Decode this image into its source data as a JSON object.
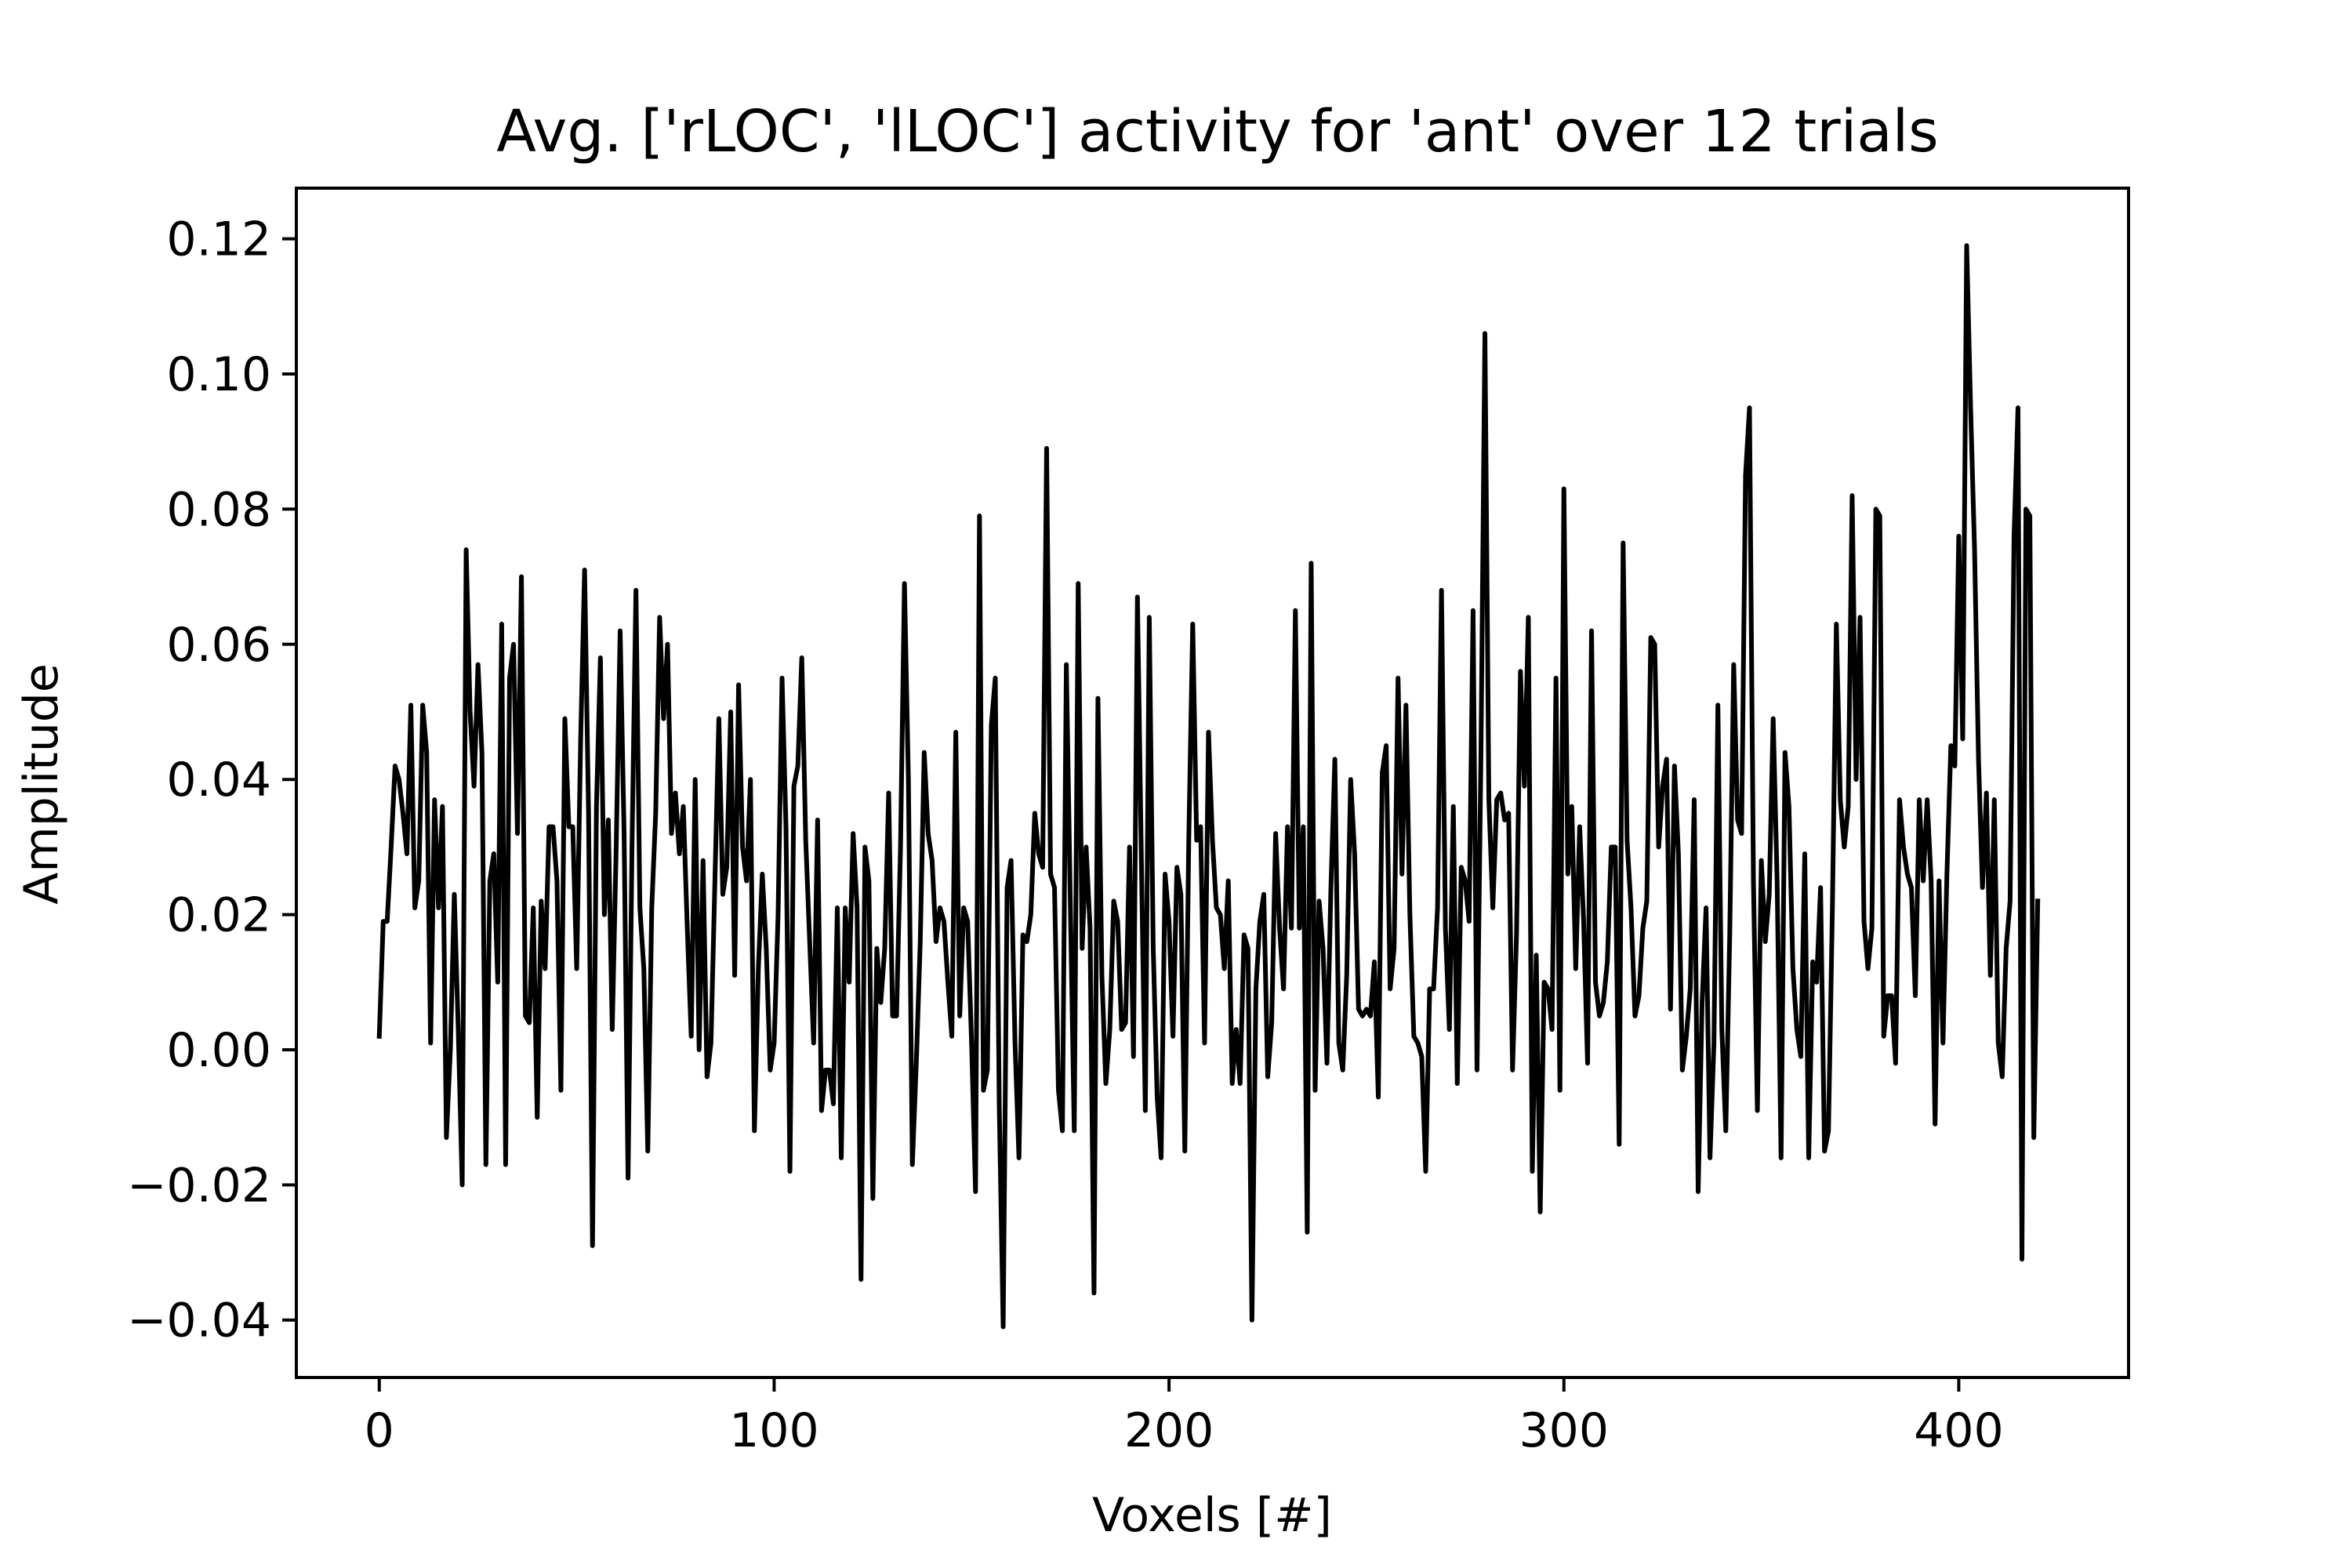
{
  "chart_data": {
    "type": "line",
    "title": "Avg. ['rLOC', 'lLOC'] activity for 'ant' over 12 trials",
    "xlabel": "Voxels [#]",
    "ylabel": "Amplitude",
    "xlim": [
      -21,
      443
    ],
    "ylim": [
      -0.0485,
      0.1275
    ],
    "x_ticks": [
      0,
      100,
      200,
      300,
      400
    ],
    "x_tick_labels": [
      "0",
      "100",
      "200",
      "300",
      "400"
    ],
    "y_ticks": [
      -0.04,
      -0.02,
      0.0,
      0.02,
      0.04,
      0.06,
      0.08,
      0.1,
      0.12
    ],
    "y_tick_labels": [
      "−0.04",
      "−0.02",
      "0.00",
      "0.02",
      "0.04",
      "0.06",
      "0.08",
      "0.10",
      "0.12"
    ],
    "grid": false,
    "line_color": "#000000",
    "series": [
      {
        "x_start": 0,
        "x_step": 1,
        "values": [
          0.002,
          0.019,
          0.019,
          0.03,
          0.042,
          0.04,
          0.035,
          0.029,
          0.051,
          0.021,
          0.025,
          0.051,
          0.044,
          0.001,
          0.037,
          0.021,
          0.036,
          -0.013,
          0.0,
          0.023,
          0.003,
          -0.02,
          0.074,
          0.05,
          0.039,
          0.057,
          0.044,
          -0.017,
          0.025,
          0.029,
          0.01,
          0.063,
          -0.017,
          0.055,
          0.06,
          0.032,
          0.07,
          0.005,
          0.004,
          0.021,
          -0.01,
          0.022,
          0.012,
          0.033,
          0.033,
          0.025,
          -0.006,
          0.049,
          0.033,
          0.033,
          0.012,
          0.046,
          0.071,
          0.035,
          -0.029,
          0.036,
          0.058,
          0.02,
          0.034,
          0.003,
          0.03,
          0.062,
          0.032,
          -0.019,
          0.03,
          0.068,
          0.021,
          0.012,
          -0.015,
          0.021,
          0.035,
          0.064,
          0.049,
          0.06,
          0.032,
          0.038,
          0.029,
          0.036,
          0.018,
          0.002,
          0.04,
          0.0,
          0.028,
          -0.004,
          0.001,
          0.025,
          0.049,
          0.023,
          0.027,
          0.05,
          0.011,
          0.054,
          0.03,
          0.025,
          0.04,
          -0.012,
          0.012,
          0.026,
          0.015,
          -0.003,
          0.001,
          0.02,
          0.055,
          0.033,
          -0.018,
          0.039,
          0.042,
          0.058,
          0.031,
          0.016,
          0.001,
          0.034,
          -0.009,
          -0.003,
          -0.003,
          -0.008,
          0.021,
          -0.016,
          0.021,
          0.01,
          0.032,
          0.021,
          -0.034,
          0.03,
          0.025,
          -0.022,
          0.015,
          0.007,
          0.015,
          0.038,
          0.005,
          0.005,
          0.03,
          0.069,
          0.04,
          -0.017,
          -0.002,
          0.016,
          0.044,
          0.032,
          0.028,
          0.016,
          0.021,
          0.019,
          0.01,
          0.002,
          0.047,
          0.005,
          0.021,
          0.019,
          0.001,
          -0.021,
          0.079,
          -0.006,
          -0.003,
          0.048,
          0.055,
          -0.008,
          -0.041,
          0.024,
          0.028,
          0.001,
          -0.016,
          0.017,
          0.016,
          0.02,
          0.035,
          0.029,
          0.027,
          0.089,
          0.026,
          0.024,
          -0.006,
          -0.012,
          0.057,
          0.022,
          -0.012,
          0.069,
          0.015,
          0.03,
          0.018,
          -0.036,
          0.052,
          0.011,
          -0.005,
          0.003,
          0.022,
          0.019,
          0.003,
          0.004,
          0.03,
          -0.001,
          0.067,
          0.028,
          -0.009,
          0.064,
          0.015,
          -0.007,
          -0.016,
          0.026,
          0.019,
          0.002,
          0.027,
          0.023,
          -0.015,
          0.031,
          0.063,
          0.031,
          0.033,
          0.001,
          0.047,
          0.031,
          0.021,
          0.02,
          0.012,
          0.025,
          -0.005,
          0.003,
          -0.005,
          0.017,
          0.015,
          -0.04,
          0.009,
          0.019,
          0.023,
          -0.004,
          0.004,
          0.032,
          0.018,
          0.009,
          0.033,
          0.018,
          0.065,
          0.018,
          0.033,
          -0.027,
          0.072,
          -0.006,
          0.022,
          0.015,
          -0.002,
          0.024,
          0.043,
          0.001,
          -0.003,
          0.011,
          0.04,
          0.029,
          0.006,
          0.005,
          0.006,
          0.005,
          0.013,
          -0.007,
          0.041,
          0.045,
          0.009,
          0.015,
          0.055,
          0.026,
          0.051,
          0.02,
          0.002,
          0.001,
          -0.001,
          -0.018,
          0.009,
          0.009,
          0.021,
          0.068,
          0.018,
          0.003,
          0.036,
          -0.005,
          0.027,
          0.025,
          0.019,
          0.065,
          -0.003,
          0.044,
          0.106,
          0.037,
          0.021,
          0.037,
          0.038,
          0.034,
          0.035,
          -0.003,
          0.017,
          0.056,
          0.039,
          0.064,
          -0.018,
          0.014,
          -0.024,
          0.01,
          0.009,
          0.003,
          0.055,
          -0.006,
          0.083,
          0.026,
          0.036,
          0.012,
          0.033,
          0.019,
          -0.002,
          0.062,
          0.01,
          0.005,
          0.007,
          0.013,
          0.03,
          0.03,
          -0.014,
          0.075,
          0.031,
          0.021,
          0.005,
          0.008,
          0.018,
          0.022,
          0.061,
          0.06,
          0.03,
          0.039,
          0.043,
          0.006,
          0.042,
          0.029,
          -0.003,
          0.002,
          0.009,
          0.037,
          -0.021,
          0.007,
          0.021,
          -0.016,
          0.001,
          0.051,
          0.003,
          -0.012,
          0.017,
          0.057,
          0.034,
          0.032,
          0.085,
          0.095,
          0.025,
          -0.009,
          0.028,
          0.016,
          0.023,
          0.049,
          0.025,
          -0.016,
          0.044,
          0.036,
          0.012,
          0.003,
          -0.001,
          0.029,
          -0.016,
          0.013,
          0.01,
          0.024,
          -0.015,
          -0.012,
          0.021,
          0.063,
          0.037,
          0.03,
          0.036,
          0.082,
          0.04,
          0.064,
          0.019,
          0.012,
          0.018,
          0.08,
          0.079,
          0.002,
          0.008,
          0.008,
          -0.002,
          0.037,
          0.03,
          0.026,
          0.024,
          0.008,
          0.037,
          0.025,
          0.037,
          0.025,
          -0.011,
          0.025,
          0.001,
          0.026,
          0.045,
          0.042,
          0.076,
          0.046,
          0.119,
          0.095,
          0.074,
          0.043,
          0.024,
          0.038,
          0.011,
          0.037,
          0.001,
          -0.004,
          0.015,
          0.022,
          0.076,
          0.095,
          -0.031,
          0.08,
          0.079,
          -0.013,
          0.022
        ]
      }
    ]
  }
}
